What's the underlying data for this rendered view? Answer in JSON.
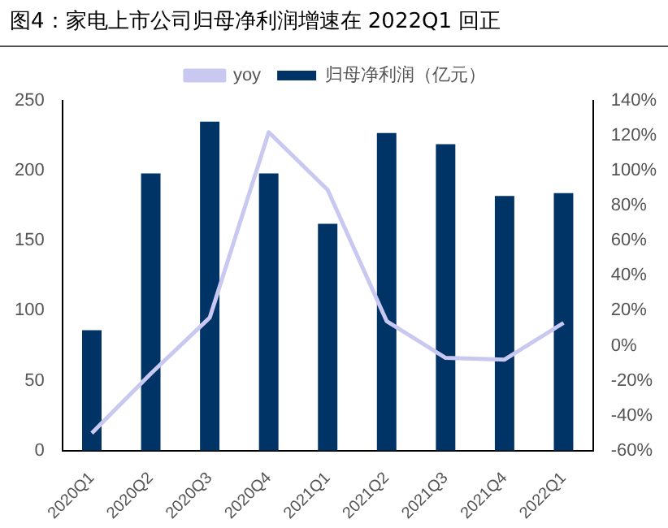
{
  "chart_data": {
    "type": "bar",
    "title": "图4：家电上市公司归母净利润增速在 2022Q1 回正",
    "categories": [
      "2020Q1",
      "2020Q2",
      "2020Q3",
      "2020Q4",
      "2021Q1",
      "2021Q2",
      "2021Q3",
      "2021Q4",
      "2022Q1"
    ],
    "series": [
      {
        "name": "归母净利润（亿元）",
        "color": "#003366",
        "values": [
          86,
          198,
          235,
          198,
          162,
          227,
          219,
          182,
          184
        ]
      },
      {
        "name": "yoy",
        "type": "line",
        "axis": "y2",
        "color": "#c8c8f0",
        "values": [
          -50,
          -16,
          16,
          122,
          89,
          14,
          -7,
          -8,
          13
        ]
      }
    ],
    "ylim": [
      0,
      250
    ],
    "yticks": [
      0,
      50,
      100,
      150,
      200,
      250
    ],
    "y2lim": [
      -60,
      140
    ],
    "y2ticks": [
      {
        "value": -60,
        "label": "-60%"
      },
      {
        "value": -40,
        "label": "-40%"
      },
      {
        "value": -20,
        "label": "-20%"
      },
      {
        "value": 0,
        "label": "0%"
      },
      {
        "value": 20,
        "label": "20%"
      },
      {
        "value": 40,
        "label": "40%"
      },
      {
        "value": 60,
        "label": "60%"
      },
      {
        "value": 80,
        "label": "80%"
      },
      {
        "value": 100,
        "label": "100%"
      },
      {
        "value": 120,
        "label": "120%"
      },
      {
        "value": 140,
        "label": "140%"
      }
    ],
    "grid": false,
    "legend": "top",
    "marker": "none"
  }
}
